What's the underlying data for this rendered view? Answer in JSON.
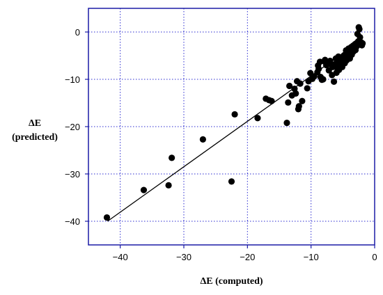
{
  "chart_data": {
    "type": "scatter",
    "title": "",
    "xlabel": "ΔE (computed)",
    "ylabel_line1": "ΔE",
    "ylabel_line2": "(predicted)",
    "xlim": [
      -45,
      0
    ],
    "ylim": [
      -45,
      5
    ],
    "xticks": [
      -40,
      -30,
      -20,
      -10,
      0
    ],
    "yticks": [
      0,
      -10,
      -20,
      -30,
      -40
    ],
    "grid": true,
    "series": [
      {
        "points": [
          [
            -42.1,
            -39.2
          ],
          [
            -36.3,
            -33.4
          ],
          [
            -32.4,
            -32.4
          ],
          [
            -31.9,
            -26.6
          ],
          [
            -27.0,
            -22.7
          ],
          [
            -22.5,
            -31.6
          ],
          [
            -22.0,
            -17.4
          ],
          [
            -18.4,
            -18.2
          ],
          [
            -17.1,
            -14.1
          ],
          [
            -16.6,
            -14.4
          ],
          [
            -16.2,
            -14.6
          ],
          [
            -13.8,
            -19.2
          ],
          [
            -13.6,
            -14.9
          ],
          [
            -13.4,
            -11.4
          ],
          [
            -13.0,
            -13.4
          ],
          [
            -12.6,
            -12.0
          ],
          [
            -12.4,
            -13.0
          ],
          [
            -12.2,
            -10.4
          ],
          [
            -12.0,
            -16.3
          ],
          [
            -11.9,
            -15.7
          ],
          [
            -11.7,
            -10.9
          ],
          [
            -11.4,
            -14.6
          ],
          [
            -10.6,
            -11.9
          ],
          [
            -10.4,
            -10.4
          ],
          [
            -10.1,
            -8.7
          ],
          [
            -9.8,
            -9.9
          ],
          [
            -9.5,
            -9.4
          ],
          [
            -9.0,
            -8.5
          ],
          [
            -8.9,
            -7.1
          ],
          [
            -8.8,
            -7.8
          ],
          [
            -8.6,
            -6.3
          ],
          [
            -8.5,
            -9.5
          ],
          [
            -8.3,
            -10.1
          ],
          [
            -8.1,
            -10.0
          ],
          [
            -7.9,
            -6.2
          ],
          [
            -7.8,
            -5.9
          ],
          [
            -7.6,
            -7.0
          ],
          [
            -7.4,
            -6.6
          ],
          [
            -7.2,
            -8.1
          ],
          [
            -7.0,
            -6.1
          ],
          [
            -6.8,
            -6.9
          ],
          [
            -6.7,
            -9.1
          ],
          [
            -6.6,
            -7.4
          ],
          [
            -6.4,
            -10.5
          ],
          [
            -6.2,
            -6.8
          ],
          [
            -6.1,
            -5.6
          ],
          [
            -6.0,
            -8.6
          ],
          [
            -5.9,
            -7.6
          ],
          [
            -5.7,
            -5.2
          ],
          [
            -5.6,
            -8.0
          ],
          [
            -5.5,
            -6.3
          ],
          [
            -5.3,
            -6.9
          ],
          [
            -5.2,
            -5.8
          ],
          [
            -5.1,
            -7.4
          ],
          [
            -5.0,
            -5.4
          ],
          [
            -4.8,
            -4.9
          ],
          [
            -4.7,
            -6.6
          ],
          [
            -4.6,
            -5.1
          ],
          [
            -4.5,
            -3.9
          ],
          [
            -4.4,
            -6.0
          ],
          [
            -4.3,
            -4.4
          ],
          [
            -4.2,
            -5.3
          ],
          [
            -4.1,
            -3.5
          ],
          [
            -4.0,
            -4.6
          ],
          [
            -3.9,
            -5.6
          ],
          [
            -3.8,
            -4.0
          ],
          [
            -3.7,
            -3.2
          ],
          [
            -3.6,
            -4.8
          ],
          [
            -3.5,
            -3.6
          ],
          [
            -3.4,
            -2.9
          ],
          [
            -3.3,
            -4.1
          ],
          [
            -3.2,
            -3.3
          ],
          [
            -3.1,
            -2.6
          ],
          [
            -3.0,
            -3.8
          ],
          [
            -2.9,
            -2.4
          ],
          [
            -2.8,
            -3.0
          ],
          [
            -2.7,
            -0.4
          ],
          [
            -2.6,
            -2.0
          ],
          [
            -2.5,
            1.0
          ],
          [
            -2.4,
            0.6
          ],
          [
            -2.3,
            -1.1
          ],
          [
            -2.2,
            -2.7
          ],
          [
            -2.1,
            -2.2
          ],
          [
            -2.0,
            -2.8
          ],
          [
            -1.9,
            -2.4
          ]
        ]
      }
    ],
    "fit_line": {
      "x": [
        -42.0,
        -2.2
      ],
      "y": [
        -40.0,
        -1.8
      ]
    }
  }
}
